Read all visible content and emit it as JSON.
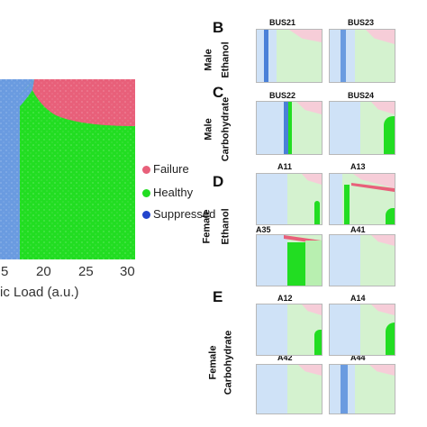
{
  "main_plot": {
    "xlabel": "ic Load (a.u.)",
    "x_ticks": [
      "5",
      "20",
      "25",
      "30"
    ],
    "legend": [
      {
        "label": "Failure",
        "color": "#e8607a"
      },
      {
        "label": "Healthy",
        "color": "#22dd22"
      },
      {
        "label": "Suppressed",
        "color": "#2244cc"
      }
    ]
  },
  "panels": {
    "B": {
      "letter": "B",
      "row_label": [
        "Male",
        "Ethanol"
      ],
      "titles": [
        "BUS21",
        "BUS23"
      ]
    },
    "C": {
      "letter": "C",
      "row_label": [
        "Male",
        "Carbohydrate"
      ],
      "titles": [
        "BUS22",
        "BUS24"
      ]
    },
    "D": {
      "letter": "D",
      "row_label": [
        "Female",
        "Ethanol"
      ],
      "titles": [
        "A11",
        "A13",
        "A35",
        "A41"
      ]
    },
    "E": {
      "letter": "E",
      "row_label": [
        "Female",
        "Carbohydrate"
      ],
      "titles": [
        "A12",
        "A14",
        "A42",
        "A44"
      ]
    }
  },
  "colors": {
    "suppressed_bg": "#cfe2f7",
    "healthy_bg": "#d4f2cf",
    "failure_bg": "#f6cdd8",
    "failure": "#e8607a",
    "healthy": "#22dd22",
    "suppressed": "#6a9be0"
  }
}
